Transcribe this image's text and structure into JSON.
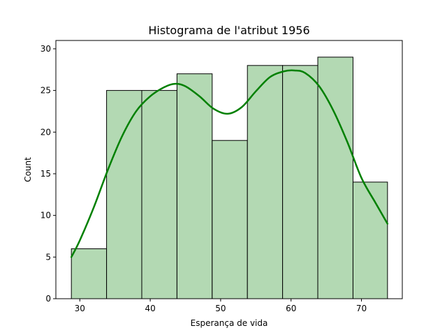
{
  "chart_data": {
    "type": "bar",
    "title": "Histograma de l'atribut 1956",
    "xlabel": "Esperança de vida",
    "ylabel": "Count",
    "xlim": [
      26.6,
      75.8
    ],
    "ylim": [
      0,
      31
    ],
    "xticks": [
      30,
      40,
      50,
      60,
      70
    ],
    "yticks": [
      0,
      5,
      10,
      15,
      20,
      25,
      30
    ],
    "bins": [
      {
        "x0": 28.8,
        "x1": 33.8,
        "count": 6
      },
      {
        "x0": 33.8,
        "x1": 38.8,
        "count": 25
      },
      {
        "x0": 38.8,
        "x1": 43.8,
        "count": 25
      },
      {
        "x0": 43.8,
        "x1": 48.8,
        "count": 27
      },
      {
        "x0": 48.8,
        "x1": 53.8,
        "count": 19
      },
      {
        "x0": 53.8,
        "x1": 58.8,
        "count": 28
      },
      {
        "x0": 58.8,
        "x1": 63.8,
        "count": 28
      },
      {
        "x0": 63.8,
        "x1": 68.8,
        "count": 29
      },
      {
        "x0": 68.8,
        "x1": 73.7,
        "count": 14
      }
    ],
    "kde": {
      "x": [
        28.8,
        30,
        32,
        34,
        36,
        38,
        40,
        42,
        43.5,
        45,
        47,
        49,
        51,
        53,
        55,
        57,
        59,
        60.5,
        62,
        64,
        66,
        68,
        70,
        72,
        73.7
      ],
      "y": [
        5,
        7,
        11,
        15.5,
        19.5,
        22.5,
        24.3,
        25.4,
        25.8,
        25.5,
        24.3,
        22.8,
        22.2,
        23.0,
        24.9,
        26.6,
        27.3,
        27.4,
        27.1,
        25.5,
        22.6,
        18.8,
        14.5,
        11.5,
        9
      ]
    },
    "colors": {
      "bar_fill": "#b3d9b3",
      "bar_edge": "#000000",
      "kde_line": "#008000"
    },
    "grid": false,
    "legend": "none"
  }
}
